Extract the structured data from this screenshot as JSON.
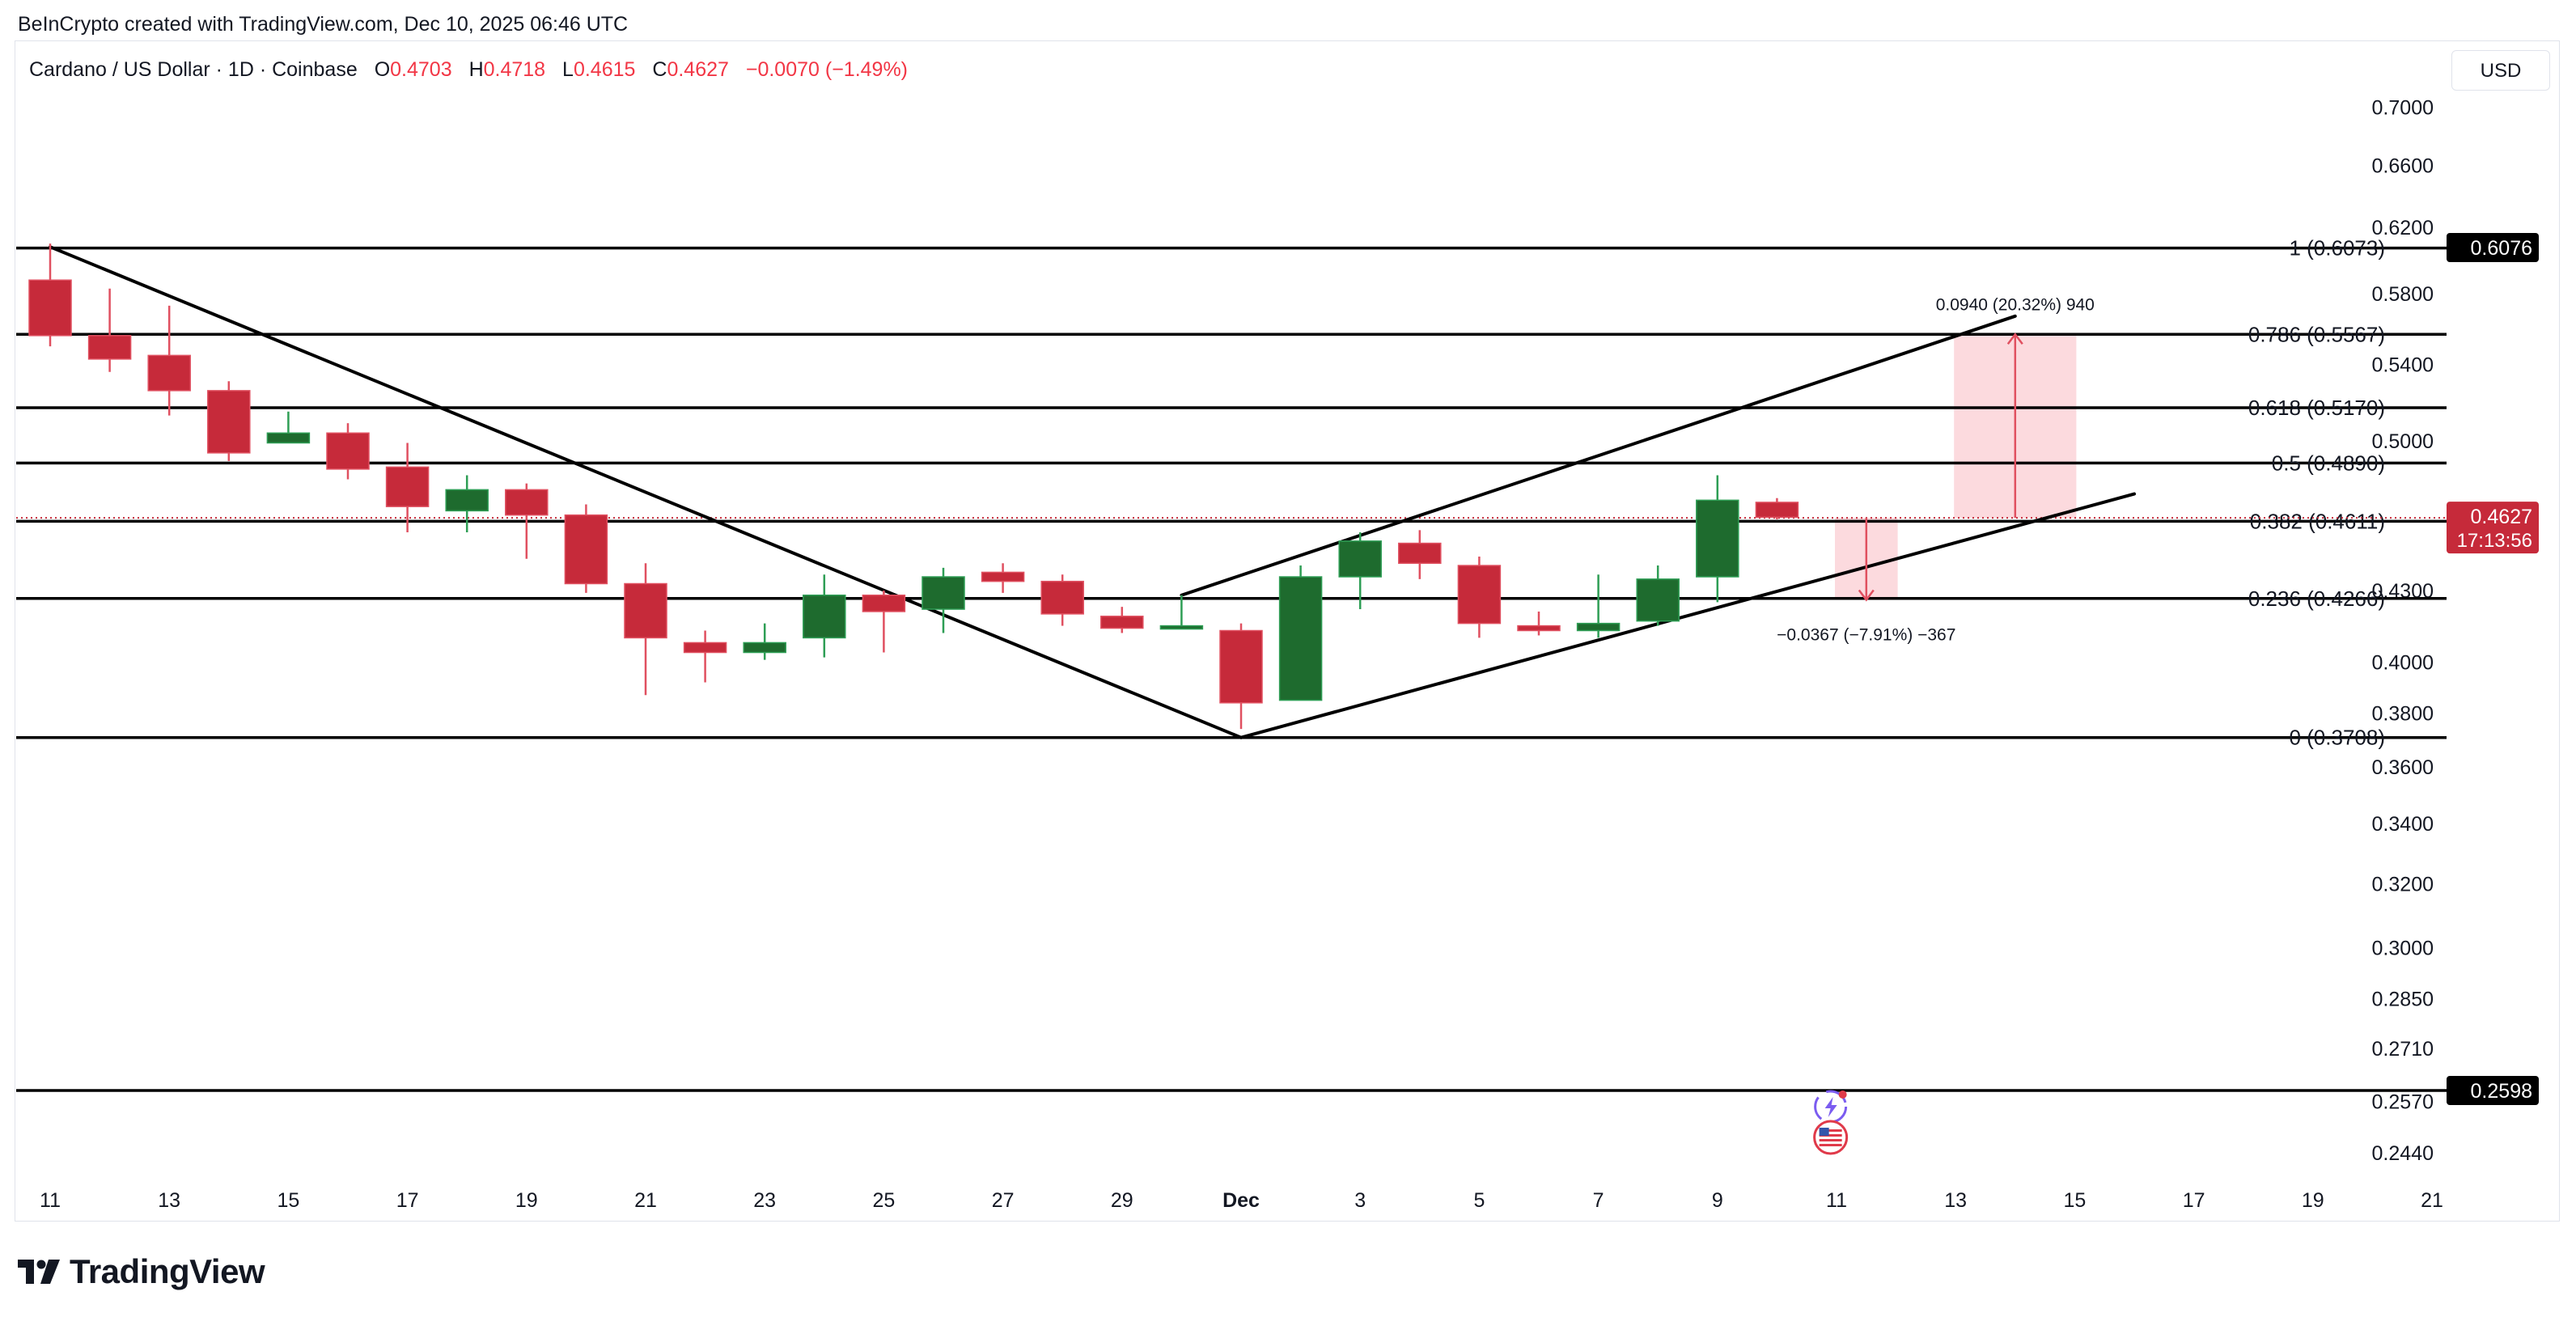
{
  "credit": "BeInCrypto created with TradingView.com, Dec 10, 2025 06:46 UTC",
  "legend": {
    "symbol": "Cardano / US Dollar · 1D · Coinbase",
    "open_label": "O",
    "open": "0.4703",
    "high_label": "H",
    "high": "0.4718",
    "low_label": "L",
    "low": "0.4615",
    "close_label": "C",
    "close": "0.4627",
    "change": "−0.0070 (−1.49%)"
  },
  "currency": "USD",
  "branding": "TradingView",
  "colors": {
    "up": "#1e6b2e",
    "down": "#c62a3a",
    "price_tag": "#c62a3a",
    "range_fill": "#fbd4d8"
  },
  "chart_data": {
    "type": "candlestick",
    "y_scale": "log",
    "y_ticks": [
      "0.7000",
      "0.6600",
      "0.6200",
      "0.5800",
      "0.5400",
      "0.5000",
      "0.4300",
      "0.4000",
      "0.3800",
      "0.3600",
      "0.3400",
      "0.3200",
      "0.3000",
      "0.2850",
      "0.2710",
      "0.2570",
      "0.2440"
    ],
    "x_ticks": [
      {
        "label": "11",
        "day": 0
      },
      {
        "label": "13",
        "day": 2
      },
      {
        "label": "15",
        "day": 4
      },
      {
        "label": "17",
        "day": 6
      },
      {
        "label": "19",
        "day": 8
      },
      {
        "label": "21",
        "day": 10
      },
      {
        "label": "23",
        "day": 12
      },
      {
        "label": "25",
        "day": 14
      },
      {
        "label": "27",
        "day": 16
      },
      {
        "label": "29",
        "day": 18
      },
      {
        "label": "Dec",
        "day": 20
      },
      {
        "label": "3",
        "day": 22
      },
      {
        "label": "5",
        "day": 24
      },
      {
        "label": "7",
        "day": 26
      },
      {
        "label": "9",
        "day": 28
      },
      {
        "label": "11",
        "day": 30
      },
      {
        "label": "13",
        "day": 32
      },
      {
        "label": "15",
        "day": 34
      },
      {
        "label": "17",
        "day": 36
      },
      {
        "label": "19",
        "day": 38
      },
      {
        "label": "21",
        "day": 40
      }
    ],
    "candles": [
      {
        "day": 0,
        "o": 0.588,
        "h": 0.61,
        "l": 0.55,
        "c": 0.556
      },
      {
        "day": 1,
        "o": 0.556,
        "h": 0.583,
        "l": 0.536,
        "c": 0.543
      },
      {
        "day": 2,
        "o": 0.545,
        "h": 0.573,
        "l": 0.513,
        "c": 0.526
      },
      {
        "day": 3,
        "o": 0.526,
        "h": 0.531,
        "l": 0.49,
        "c": 0.494
      },
      {
        "day": 4,
        "o": 0.499,
        "h": 0.515,
        "l": 0.499,
        "c": 0.504
      },
      {
        "day": 5,
        "o": 0.504,
        "h": 0.509,
        "l": 0.481,
        "c": 0.486
      },
      {
        "day": 6,
        "o": 0.487,
        "h": 0.499,
        "l": 0.456,
        "c": 0.468
      },
      {
        "day": 7,
        "o": 0.466,
        "h": 0.483,
        "l": 0.456,
        "c": 0.476
      },
      {
        "day": 8,
        "o": 0.476,
        "h": 0.479,
        "l": 0.444,
        "c": 0.464
      },
      {
        "day": 9,
        "o": 0.464,
        "h": 0.469,
        "l": 0.429,
        "c": 0.433
      },
      {
        "day": 10,
        "o": 0.433,
        "h": 0.442,
        "l": 0.387,
        "c": 0.41
      },
      {
        "day": 11,
        "o": 0.408,
        "h": 0.413,
        "l": 0.392,
        "c": 0.404
      },
      {
        "day": 12,
        "o": 0.404,
        "h": 0.416,
        "l": 0.401,
        "c": 0.408
      },
      {
        "day": 13,
        "o": 0.41,
        "h": 0.437,
        "l": 0.402,
        "c": 0.428
      },
      {
        "day": 14,
        "o": 0.428,
        "h": 0.43,
        "l": 0.404,
        "c": 0.421
      },
      {
        "day": 15,
        "o": 0.422,
        "h": 0.44,
        "l": 0.412,
        "c": 0.436
      },
      {
        "day": 16,
        "o": 0.438,
        "h": 0.442,
        "l": 0.429,
        "c": 0.434
      },
      {
        "day": 17,
        "o": 0.434,
        "h": 0.437,
        "l": 0.415,
        "c": 0.42
      },
      {
        "day": 18,
        "o": 0.419,
        "h": 0.423,
        "l": 0.412,
        "c": 0.414
      },
      {
        "day": 19,
        "o": 0.415,
        "h": 0.428,
        "l": 0.414,
        "c": 0.415
      },
      {
        "day": 20,
        "o": 0.413,
        "h": 0.416,
        "l": 0.374,
        "c": 0.384
      },
      {
        "day": 21,
        "o": 0.385,
        "h": 0.441,
        "l": 0.385,
        "c": 0.436
      },
      {
        "day": 22,
        "o": 0.436,
        "h": 0.456,
        "l": 0.422,
        "c": 0.452
      },
      {
        "day": 23,
        "o": 0.451,
        "h": 0.457,
        "l": 0.435,
        "c": 0.442
      },
      {
        "day": 24,
        "o": 0.441,
        "h": 0.445,
        "l": 0.41,
        "c": 0.416
      },
      {
        "day": 25,
        "o": 0.415,
        "h": 0.421,
        "l": 0.411,
        "c": 0.413
      },
      {
        "day": 26,
        "o": 0.413,
        "h": 0.437,
        "l": 0.41,
        "c": 0.416
      },
      {
        "day": 27,
        "o": 0.417,
        "h": 0.441,
        "l": 0.415,
        "c": 0.435
      },
      {
        "day": 28,
        "o": 0.436,
        "h": 0.483,
        "l": 0.425,
        "c": 0.471
      },
      {
        "day": 29,
        "o": 0.47,
        "h": 0.472,
        "l": 0.462,
        "c": 0.463
      }
    ],
    "fib_levels": [
      {
        "ratio": "1",
        "price": 0.6073,
        "label": "1 (0.6073)"
      },
      {
        "ratio": "0.786",
        "price": 0.5567,
        "label": "0.786 (0.5567)"
      },
      {
        "ratio": "0.618",
        "price": 0.517,
        "label": "0.618 (0.5170)"
      },
      {
        "ratio": "0.5",
        "price": 0.489,
        "label": "0.5 (0.4890)"
      },
      {
        "ratio": "0.382",
        "price": 0.4611,
        "label": "0.382 (0.4611)"
      },
      {
        "ratio": "0.236",
        "price": 0.4266,
        "label": "0.236 (0.4266)"
      },
      {
        "ratio": "0",
        "price": 0.3708,
        "label": "0 (0.3708)"
      }
    ],
    "horizontal_line": {
      "price": 0.2598
    },
    "price_tags": [
      {
        "price": 0.6076,
        "label": "0.6076",
        "style": "black"
      },
      {
        "price": 0.4627,
        "label": "0.4627",
        "sub": "17:13:56",
        "style": "red"
      },
      {
        "price": 0.2598,
        "label": "0.2598",
        "style": "black"
      }
    ],
    "trendlines": [
      {
        "name": "down",
        "from": {
          "day": 0,
          "price": 0.608
        },
        "to": {
          "day": 20,
          "price": 0.3708
        }
      },
      {
        "name": "channel-upper",
        "from": {
          "day": 19,
          "price": 0.428
        },
        "to": {
          "day": 33,
          "price": 0.567
        }
      },
      {
        "name": "channel-lower",
        "from": {
          "day": 20,
          "price": 0.3708
        },
        "to": {
          "day": 35,
          "price": 0.474
        }
      }
    ],
    "measures": [
      {
        "from_day": 32,
        "to_day": 34,
        "base": 0.4627,
        "target": 0.5567,
        "label": "0.0940 (20.32%) 940"
      },
      {
        "from_day": 30,
        "to_day": 31,
        "base": 0.4627,
        "target": 0.426,
        "label": "−0.0367 (−7.91%) −367"
      }
    ],
    "event_icons": [
      {
        "day": 29.9,
        "price": 0.2556,
        "icon": "crypto-event-icon"
      },
      {
        "day": 29.9,
        "price": 0.2478,
        "icon": "us-flag-icon"
      }
    ]
  }
}
